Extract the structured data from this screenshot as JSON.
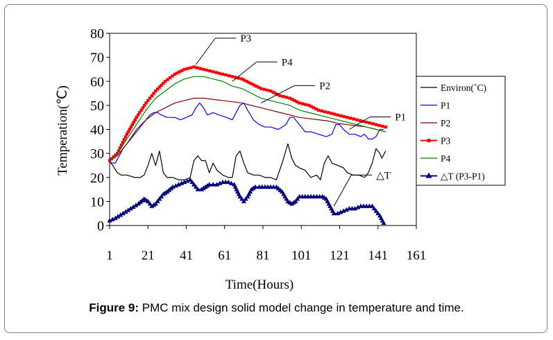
{
  "caption": {
    "label": "Figure 9:",
    "text": " PMC mix design solid model change in temperature and time."
  },
  "chart_data": {
    "type": "line",
    "title": "",
    "xlabel": "Time(Hours)",
    "ylabel": "Temperation(℃)",
    "xlim": [
      1,
      161
    ],
    "ylim": [
      0,
      80
    ],
    "xticks": [
      "1",
      "21",
      "41",
      "61",
      "81",
      "101",
      "121",
      "141",
      "161"
    ],
    "yticks": [
      "0",
      "10",
      "20",
      "30",
      "40",
      "50",
      "60",
      "70",
      "80"
    ],
    "legend_position": "right",
    "colors": {
      "Environ": "#000000",
      "P1": "#0000ff",
      "P2": "#800000",
      "P3": "#ff0000",
      "P4": "#008000",
      "dT": "#000080"
    },
    "series": [
      {
        "key": "Environ",
        "name": "Environ(˚C)",
        "x": [
          1,
          5,
          7,
          10,
          14,
          17,
          19,
          21,
          23,
          25,
          27,
          29,
          31,
          34,
          37,
          40,
          43,
          45,
          47,
          49,
          51,
          53,
          55,
          57,
          60,
          63,
          65,
          67,
          69,
          71,
          73,
          76,
          79,
          82,
          85,
          88,
          91,
          94,
          96,
          98,
          100,
          103,
          106,
          109,
          111,
          113,
          115,
          117,
          120,
          123,
          125,
          128,
          131,
          134,
          136,
          138,
          140,
          142,
          143,
          145
        ],
        "values": [
          27,
          22,
          21,
          21,
          20,
          20,
          21,
          25,
          30,
          25,
          31,
          22,
          20,
          20,
          19,
          19,
          20,
          27,
          29,
          27,
          27,
          22,
          26,
          23,
          21,
          20,
          20,
          29,
          31,
          26,
          22,
          21,
          21,
          20,
          20,
          19,
          26,
          34,
          28,
          25,
          24,
          23,
          20,
          21,
          19,
          26,
          29,
          26,
          25,
          24,
          22,
          21,
          21,
          20,
          22,
          26,
          32,
          30,
          28,
          31
        ]
      },
      {
        "key": "P1",
        "name": "P1",
        "x": [
          1,
          4,
          8,
          12,
          16,
          19,
          22,
          24,
          26,
          28,
          31,
          35,
          38,
          41,
          44,
          46,
          48,
          50,
          52,
          55,
          58,
          62,
          65,
          67,
          69,
          71,
          73,
          76,
          79,
          82,
          85,
          89,
          93,
          95,
          97,
          100,
          103,
          106,
          110,
          114,
          117,
          119,
          121,
          123,
          126,
          129,
          132,
          134,
          136,
          138,
          140,
          142,
          144
        ],
        "values": [
          26,
          26,
          32,
          36,
          40,
          43,
          46,
          47,
          47,
          46,
          45,
          45,
          44,
          45,
          46,
          49,
          51,
          49,
          46,
          47,
          46,
          45,
          44,
          47,
          50,
          51,
          48,
          44,
          42,
          41,
          41,
          40,
          42,
          45,
          45,
          42,
          39,
          39,
          38,
          37,
          38,
          42,
          42,
          40,
          38,
          38,
          37,
          38,
          36,
          36,
          37,
          40,
          40
        ]
      },
      {
        "key": "P2",
        "name": "P2",
        "x": [
          1,
          5,
          10,
          15,
          20,
          25,
          30,
          35,
          40,
          45,
          50,
          55,
          60,
          65,
          70,
          75,
          80,
          85,
          90,
          95,
          100,
          105,
          110,
          115,
          120,
          125,
          130,
          135,
          140,
          145
        ],
        "values": [
          27,
          29,
          34,
          40,
          44,
          47,
          49,
          51,
          52,
          53,
          53,
          52.5,
          52,
          51.5,
          51,
          50,
          49,
          48,
          47,
          46,
          45,
          44.5,
          44,
          43.5,
          42.5,
          42,
          41.5,
          41,
          40,
          39
        ]
      },
      {
        "key": "P3",
        "name": "P3",
        "x": [
          1,
          5,
          10,
          15,
          20,
          25,
          30,
          35,
          40,
          45,
          50,
          55,
          60,
          65,
          70,
          75,
          80,
          85,
          90,
          95,
          100,
          105,
          110,
          115,
          120,
          125,
          130,
          135,
          140,
          145
        ],
        "values": [
          27,
          30,
          38,
          45,
          51,
          56,
          60,
          63,
          65,
          66,
          65,
          64,
          63,
          62,
          61,
          59,
          57,
          56,
          54,
          53,
          51,
          50,
          48,
          47,
          46,
          45,
          44,
          43,
          42,
          41
        ]
      },
      {
        "key": "P4",
        "name": "P4",
        "x": [
          1,
          5,
          10,
          15,
          20,
          25,
          30,
          35,
          40,
          45,
          50,
          55,
          60,
          65,
          70,
          75,
          80,
          85,
          90,
          95,
          100,
          105,
          110,
          115,
          120,
          125,
          130,
          135,
          140,
          145
        ],
        "values": [
          27,
          30,
          36,
          42,
          48,
          53,
          56,
          59,
          61,
          62,
          62,
          61,
          60,
          58,
          57,
          55,
          53,
          52,
          51,
          50,
          48,
          47,
          46,
          45,
          44,
          43,
          42,
          41,
          40,
          39
        ]
      },
      {
        "key": "dT",
        "name": "△T (P3-P1)",
        "x": [
          1,
          4,
          8,
          12,
          16,
          19,
          21,
          23,
          25,
          27,
          29,
          31,
          34,
          37,
          40,
          43,
          45,
          47,
          49,
          51,
          53,
          55,
          57,
          60,
          63,
          66,
          69,
          71,
          73,
          75,
          77,
          79,
          82,
          85,
          88,
          91,
          94,
          96,
          98,
          100,
          103,
          106,
          109,
          112,
          114,
          116,
          118,
          120,
          123,
          126,
          129,
          132,
          135,
          138,
          140,
          142,
          144
        ],
        "values": [
          2,
          3,
          5,
          7,
          9,
          11,
          10,
          8,
          9,
          11,
          13,
          14,
          16,
          17,
          18,
          19,
          17,
          15,
          15,
          16,
          17,
          17,
          17,
          18,
          18,
          17,
          12,
          10,
          12,
          15,
          16,
          16,
          16,
          16,
          16,
          14,
          10,
          9,
          10,
          12,
          12,
          12,
          12,
          12,
          11,
          8,
          5,
          5,
          6,
          7,
          7,
          8,
          8,
          8,
          6,
          4,
          1
        ]
      }
    ],
    "annotations": [
      {
        "text": "P3",
        "series": "P3",
        "x": 46,
        "y": 67
      },
      {
        "text": "P4",
        "series": "P4",
        "x": 65,
        "y": 60
      },
      {
        "text": "P2",
        "series": "P2",
        "x": 80,
        "y": 51
      },
      {
        "text": "P1",
        "series": "P1",
        "x": 126,
        "y": 40
      },
      {
        "text": "△T",
        "series": "dT",
        "x": 118,
        "y": 8
      }
    ]
  }
}
